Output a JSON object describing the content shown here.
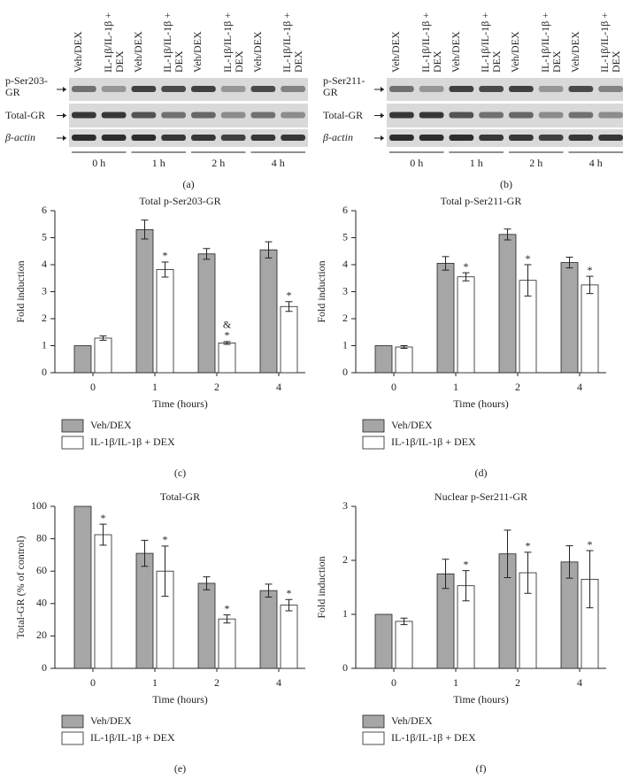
{
  "blots": [
    {
      "panel": "(a)",
      "lanes": [
        "Veh/DEX",
        "IL-1β/IL-1β + DEX",
        "Veh/DEX",
        "IL-1β/IL-1β + DEX",
        "Veh/DEX",
        "IL-1β/IL-1β + DEX",
        "Veh/DEX",
        "IL-1β/IL-1β + DEX"
      ],
      "rows": [
        "p-Ser203-GR",
        "Total-GR",
        "β-actin"
      ],
      "groups": [
        "0 h",
        "1 h",
        "2 h",
        "4 h"
      ]
    },
    {
      "panel": "(b)",
      "lanes": [
        "Veh/DEX",
        "IL-1β/IL-1β + DEX",
        "Veh/DEX",
        "IL-1β/IL-1β + DEX",
        "Veh/DEX",
        "IL-1β/IL-1β + DEX",
        "Veh/DEX",
        "IL-1β/IL-1β + DEX"
      ],
      "rows": [
        "p-Ser211-GR",
        "Total-GR",
        "β-actin"
      ],
      "groups": [
        "0 h",
        "1 h",
        "2 h",
        "4 h"
      ]
    }
  ],
  "chart_data": [
    {
      "type": "bar",
      "title": "Total p-Ser203-GR",
      "panel": "(c)",
      "xlabel": "Time (hours)",
      "ylabel": "Fold induction",
      "categories": [
        "0",
        "1",
        "2",
        "4"
      ],
      "ylim": [
        0,
        6
      ],
      "yticks": [
        0,
        1,
        2,
        3,
        4,
        5,
        6
      ],
      "series": [
        {
          "name": "Veh/DEX",
          "color": "#a6a6a6",
          "values": [
            1,
            5.3,
            4.4,
            4.55
          ],
          "errors": [
            null,
            0.35,
            0.2,
            0.3
          ]
        },
        {
          "name": "IL-1β/IL-1β + DEX",
          "color": "#ffffff",
          "values": [
            1.28,
            3.82,
            1.1,
            2.45
          ],
          "errors": [
            0.08,
            0.28,
            0.05,
            0.18
          ],
          "annotations": [
            null,
            [
              "*"
            ],
            [
              "&",
              "*"
            ],
            [
              "*"
            ]
          ]
        }
      ]
    },
    {
      "type": "bar",
      "title": "Total p-Ser211-GR",
      "panel": "(d)",
      "xlabel": "Time (hours)",
      "ylabel": "Fold induction",
      "categories": [
        "0",
        "1",
        "2",
        "4"
      ],
      "ylim": [
        0,
        6
      ],
      "yticks": [
        0,
        1,
        2,
        3,
        4,
        5,
        6
      ],
      "series": [
        {
          "name": "Veh/DEX",
          "color": "#a6a6a6",
          "values": [
            1,
            4.05,
            5.12,
            4.08
          ],
          "errors": [
            null,
            0.25,
            0.2,
            0.2
          ]
        },
        {
          "name": "IL-1β/IL-1β + DEX",
          "color": "#ffffff",
          "values": [
            0.95,
            3.55,
            3.42,
            3.25
          ],
          "errors": [
            0.05,
            0.15,
            0.58,
            0.32
          ],
          "annotations": [
            null,
            [
              "*"
            ],
            [
              "*"
            ],
            [
              "*"
            ]
          ]
        }
      ]
    },
    {
      "type": "bar",
      "title": "Total-GR",
      "panel": "(e)",
      "xlabel": "Time (hours)",
      "ylabel": "Total-GR (% of control)",
      "categories": [
        "0",
        "1",
        "2",
        "4"
      ],
      "ylim": [
        0,
        100
      ],
      "yticks": [
        0,
        20,
        40,
        60,
        80,
        100
      ],
      "series": [
        {
          "name": "Veh/DEX",
          "color": "#a6a6a6",
          "values": [
            100,
            71,
            52.5,
            48
          ],
          "errors": [
            null,
            8,
            4,
            4
          ]
        },
        {
          "name": "IL-1β/IL-1β + DEX",
          "color": "#ffffff",
          "values": [
            82.5,
            60,
            30.5,
            39
          ],
          "errors": [
            6.5,
            15.5,
            2.5,
            3.5
          ],
          "annotations": [
            [
              "*"
            ],
            [
              "*"
            ],
            [
              "*"
            ],
            [
              "*"
            ]
          ]
        }
      ]
    },
    {
      "type": "bar",
      "title": "Nuclear p-Ser211-GR",
      "panel": "(f)",
      "xlabel": "Time (hours)",
      "ylabel": "Fold induction",
      "categories": [
        "0",
        "1",
        "2",
        "4"
      ],
      "ylim": [
        0,
        3
      ],
      "yticks": [
        0,
        1,
        2,
        3
      ],
      "series": [
        {
          "name": "Veh/DEX",
          "color": "#a6a6a6",
          "values": [
            1,
            1.75,
            2.12,
            1.97
          ],
          "errors": [
            null,
            0.27,
            0.44,
            0.3
          ]
        },
        {
          "name": "IL-1β/IL-1β + DEX",
          "color": "#ffffff",
          "values": [
            0.87,
            1.53,
            1.77,
            1.65
          ],
          "errors": [
            0.06,
            0.28,
            0.38,
            0.53
          ],
          "annotations": [
            null,
            [
              "*"
            ],
            [
              "*"
            ],
            [
              "*"
            ]
          ]
        }
      ]
    }
  ]
}
